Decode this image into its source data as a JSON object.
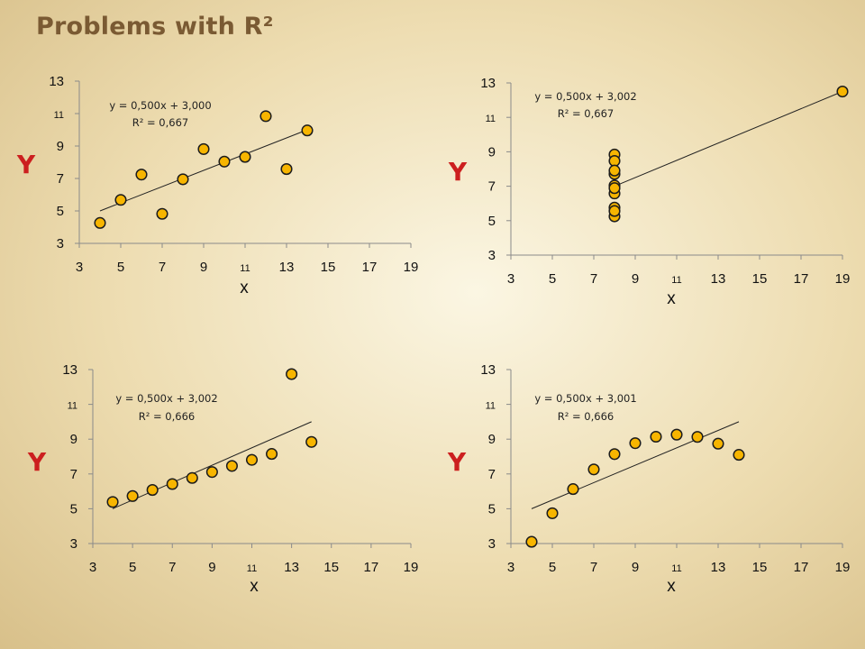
{
  "slide": {
    "title": "Problems with R²"
  },
  "chart_data": [
    {
      "type": "scatter",
      "title": "",
      "xlabel": "x",
      "ylabel": "Y",
      "xlim": [
        3,
        19
      ],
      "ylim": [
        3,
        13
      ],
      "xticks": [
        "3",
        "5",
        "7",
        "9",
        "11",
        "13",
        "15",
        "17",
        "19"
      ],
      "yticks": [
        "3",
        "5",
        "7",
        "9",
        "11",
        "13"
      ],
      "equation": "y = 0,500x + 3,000",
      "r2": "R² = 0,667",
      "trendline": {
        "slope": 0.5,
        "intercept": 3.0,
        "x_range": [
          4,
          14
        ]
      },
      "points": [
        [
          4,
          4.26
        ],
        [
          5,
          5.68
        ],
        [
          6,
          7.24
        ],
        [
          7,
          4.82
        ],
        [
          8,
          6.95
        ],
        [
          9,
          8.81
        ],
        [
          10,
          8.04
        ],
        [
          11,
          8.33
        ],
        [
          12,
          10.84
        ],
        [
          13,
          7.58
        ],
        [
          14,
          9.96
        ]
      ]
    },
    {
      "type": "scatter",
      "title": "",
      "xlabel": "x",
      "ylabel": "Y",
      "xlim": [
        3,
        19
      ],
      "ylim": [
        3,
        13
      ],
      "xticks": [
        "3",
        "5",
        "7",
        "9",
        "11",
        "13",
        "15",
        "17",
        "19"
      ],
      "yticks": [
        "3",
        "5",
        "7",
        "9",
        "11",
        "13"
      ],
      "equation": "y = 0,500x + 3,002",
      "r2": "R² = 0,667",
      "trendline": {
        "slope": 0.5,
        "intercept": 3.002,
        "x_range": [
          8,
          19
        ]
      },
      "points": [
        [
          8,
          6.58
        ],
        [
          8,
          5.76
        ],
        [
          8,
          7.71
        ],
        [
          8,
          8.84
        ],
        [
          8,
          8.47
        ],
        [
          8,
          7.04
        ],
        [
          8,
          5.25
        ],
        [
          19,
          12.5
        ],
        [
          8,
          5.56
        ],
        [
          8,
          7.91
        ],
        [
          8,
          6.89
        ]
      ]
    },
    {
      "type": "scatter",
      "title": "",
      "xlabel": "x",
      "ylabel": "Y",
      "xlim": [
        3,
        19
      ],
      "ylim": [
        3,
        13
      ],
      "xticks": [
        "3",
        "5",
        "7",
        "9",
        "11",
        "13",
        "15",
        "17",
        "19"
      ],
      "yticks": [
        "3",
        "5",
        "7",
        "9",
        "11",
        "13"
      ],
      "equation": "y = 0,500x + 3,002",
      "r2": "R² = 0,666",
      "trendline": {
        "slope": 0.5,
        "intercept": 3.002,
        "x_range": [
          4,
          14
        ]
      },
      "points": [
        [
          4,
          5.39
        ],
        [
          5,
          5.73
        ],
        [
          6,
          6.08
        ],
        [
          7,
          6.42
        ],
        [
          8,
          6.77
        ],
        [
          9,
          7.11
        ],
        [
          10,
          7.46
        ],
        [
          11,
          7.81
        ],
        [
          12,
          8.15
        ],
        [
          13,
          12.74
        ],
        [
          14,
          8.84
        ]
      ]
    },
    {
      "type": "scatter",
      "title": "",
      "xlabel": "x",
      "ylabel": "Y",
      "xlim": [
        3,
        19
      ],
      "ylim": [
        3,
        13
      ],
      "xticks": [
        "3",
        "5",
        "7",
        "9",
        "11",
        "13",
        "15",
        "17",
        "19"
      ],
      "yticks": [
        "3",
        "5",
        "7",
        "9",
        "11",
        "13"
      ],
      "equation": "y = 0,500x + 3,001",
      "r2": "R² = 0,666",
      "trendline": {
        "slope": 0.5,
        "intercept": 3.001,
        "x_range": [
          4,
          14
        ]
      },
      "points": [
        [
          4,
          3.1
        ],
        [
          5,
          4.74
        ],
        [
          6,
          6.13
        ],
        [
          7,
          7.26
        ],
        [
          8,
          8.14
        ],
        [
          9,
          8.77
        ],
        [
          10,
          9.14
        ],
        [
          11,
          9.26
        ],
        [
          12,
          9.13
        ],
        [
          13,
          8.74
        ],
        [
          14,
          8.1
        ]
      ]
    }
  ]
}
